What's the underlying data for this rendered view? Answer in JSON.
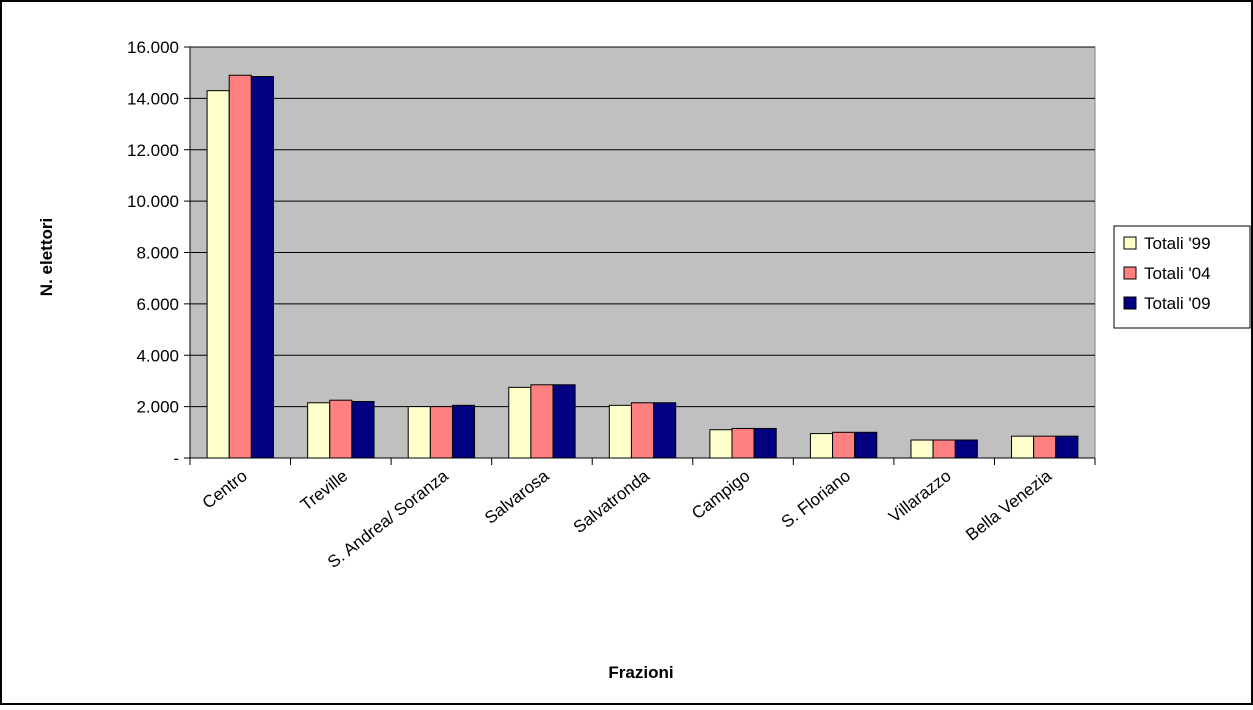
{
  "chart_data": {
    "type": "bar",
    "title": "",
    "xlabel": "Frazioni",
    "ylabel": "N. elettori",
    "ylim": [
      0,
      16000
    ],
    "yticks": [
      0,
      2000,
      4000,
      6000,
      8000,
      10000,
      12000,
      14000,
      16000
    ],
    "ytick_labels": [
      "-",
      "2.000",
      "4.000",
      "6.000",
      "8.000",
      "10.000",
      "12.000",
      "14.000",
      "16.000"
    ],
    "grid": true,
    "legend_position": "right",
    "categories": [
      "Centro",
      "Treville",
      "S. Andrea/ Soranza",
      "Salvarosa",
      "Salvatronda",
      "Campigo",
      "S. Floriano",
      "Villarazzo",
      "Bella Venezia"
    ],
    "series": [
      {
        "name": "Totali '99",
        "color": "#FFFFCC",
        "values": [
          14300,
          2150,
          2000,
          2750,
          2050,
          1100,
          950,
          700,
          850
        ]
      },
      {
        "name": "Totali '04",
        "color": "#FF8080",
        "values": [
          14900,
          2250,
          2000,
          2850,
          2150,
          1150,
          1000,
          700,
          850
        ]
      },
      {
        "name": "Totali '09",
        "color": "#000080",
        "values": [
          14850,
          2200,
          2050,
          2850,
          2150,
          1150,
          1000,
          700,
          850
        ]
      }
    ],
    "plot_background": "#C0C0C0",
    "gridline_color": "#000000"
  }
}
